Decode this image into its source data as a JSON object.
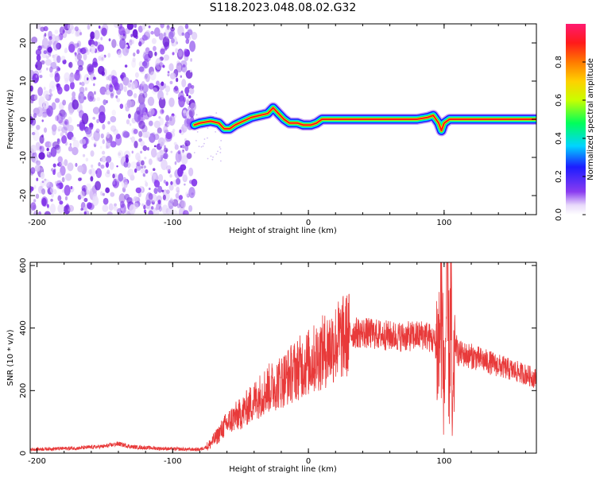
{
  "figure_title": "S118.2023.048.08.02.G32",
  "chart_data": [
    {
      "type": "heatmap",
      "title": "",
      "xlabel": "Height of straight line (km)",
      "ylabel": "Frequency (Hz)",
      "xlim": [
        -205,
        168
      ],
      "ylim": [
        -25,
        25
      ],
      "xticks": [
        -200,
        -100,
        0,
        100
      ],
      "yticks": [
        -20,
        -10,
        0,
        10,
        20
      ],
      "colorbar": {
        "label": "Normalized spectral amplitude",
        "range": [
          0,
          1
        ],
        "ticks": [
          "0.0",
          "0.2",
          "0.4",
          "0.6",
          "0.8"
        ],
        "colors": [
          "#ffffff",
          "#e8d9fb",
          "#8a3cf0",
          "#1c1cff",
          "#00d4ff",
          "#00ff5a",
          "#c8ff00",
          "#ffd000",
          "#ff7a00",
          "#ff1a1a",
          "#ff1a70"
        ]
      },
      "noise_region_x": [
        -205,
        -84
      ],
      "ridge": {
        "x": [
          -84,
          -80,
          -72,
          -66,
          -62,
          -58,
          -54,
          -48,
          -42,
          -36,
          -30,
          -26,
          -22,
          -18,
          -14,
          -8,
          -4,
          2,
          6,
          10,
          20,
          40,
          60,
          80,
          88,
          92,
          96,
          98,
          100,
          104,
          120,
          168
        ],
        "frequency_hz": [
          -1.5,
          -1,
          -0.5,
          -1,
          -2.5,
          -2.5,
          -1.5,
          -0.5,
          0.5,
          1,
          1.5,
          3,
          1.5,
          0,
          -1,
          -1,
          -1.5,
          -1.5,
          -1,
          0,
          0,
          0,
          0,
          0,
          0.5,
          1,
          -1,
          -3,
          -1,
          0,
          0,
          0
        ]
      }
    },
    {
      "type": "line",
      "title": "",
      "xlabel": "Height of straight line (km)",
      "ylabel": "SNR (10 * v/v)",
      "xlim": [
        -205,
        168
      ],
      "ylim": [
        0,
        610
      ],
      "xticks": [
        -200,
        -100,
        0,
        100
      ],
      "yticks": [
        0,
        200,
        400,
        600
      ],
      "color": "#e83a3a",
      "series": [
        {
          "x": [
            -205,
            -190,
            -170,
            -150,
            -140,
            -130,
            -110,
            -90,
            -80,
            -74,
            -68,
            -62,
            -56,
            -50,
            -44,
            -38,
            -32,
            -26,
            -20,
            -14,
            -8,
            -2,
            4,
            10,
            16,
            22,
            28,
            32,
            40,
            50,
            60,
            70,
            80,
            86,
            92,
            96,
            98,
            100,
            102,
            104,
            105,
            106,
            108,
            110,
            120,
            130,
            140,
            150,
            160,
            168
          ],
          "y": [
            12,
            14,
            16,
            22,
            30,
            20,
            15,
            12,
            12,
            22,
            50,
            85,
            110,
            125,
            150,
            175,
            200,
            215,
            230,
            250,
            270,
            285,
            300,
            320,
            340,
            360,
            375,
            385,
            385,
            380,
            375,
            372,
            375,
            380,
            360,
            330,
            480,
            180,
            520,
            240,
            600,
            60,
            360,
            320,
            310,
            295,
            280,
            265,
            252,
            238
          ]
        }
      ]
    }
  ]
}
